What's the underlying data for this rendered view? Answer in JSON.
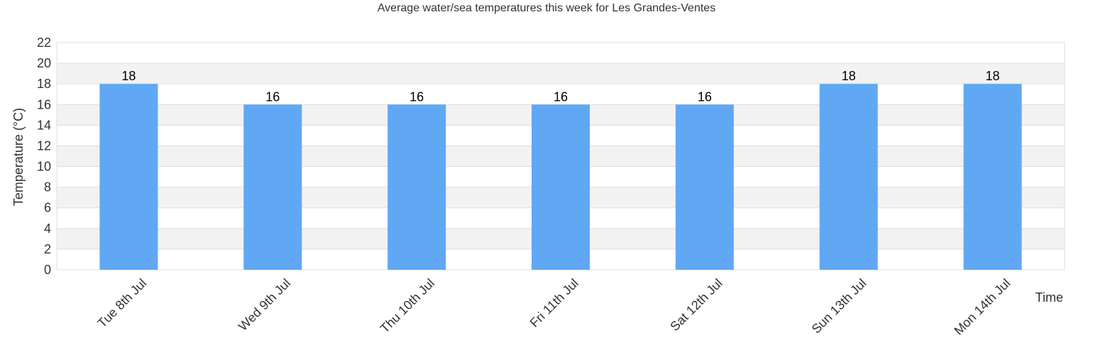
{
  "chart_data": {
    "type": "bar",
    "title": "Average water/sea temperatures this week for Les Grandes-Ventes",
    "xlabel": "Time",
    "ylabel": "Temperature (°C)",
    "categories": [
      "Tue 8th Jul",
      "Wed 9th Jul",
      "Thu 10th Jul",
      "Fri 11th Jul",
      "Sat 12th Jul",
      "Sun 13th Jul",
      "Mon 14th Jul"
    ],
    "values": [
      18,
      16,
      16,
      16,
      16,
      18,
      18
    ],
    "ylim": [
      0,
      22
    ],
    "yticks": [
      0,
      2,
      4,
      6,
      8,
      10,
      12,
      14,
      16,
      18,
      20,
      22
    ],
    "grid": true,
    "legend": "none",
    "colors": {
      "bar": "#60a8f4",
      "band": "#f2f2f2",
      "grid": "#dddddd"
    }
  }
}
